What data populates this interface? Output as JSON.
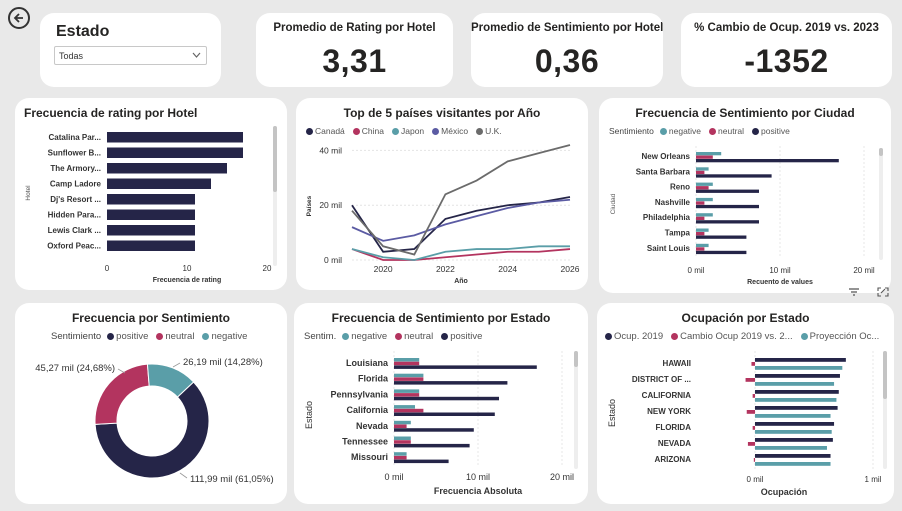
{
  "colors": {
    "navy": "#252548",
    "maroon": "#b3345f",
    "teal": "#5a9ea8",
    "gray": "#6b6b6b",
    "purple": "#5b5ba3",
    "slate": "#6c6cac"
  },
  "back_icon": "back-arrow-icon",
  "slicer": {
    "title": "Estado",
    "value": "Todas"
  },
  "kpis": [
    {
      "title": "Promedio de Rating por Hotel",
      "value": "3,31"
    },
    {
      "title": "Promedio de Sentimiento por Hotel",
      "value": "0,36"
    },
    {
      "title": "% Cambio de Ocup. 2019 vs. 2023",
      "value": "-1352"
    }
  ],
  "rating_chart": {
    "title": "Frecuencia de rating por Hotel",
    "ylabel": "Hotel",
    "xlabel": "Frecuencia de rating",
    "ticks": [
      "0",
      "10",
      "20"
    ],
    "xmax": 20,
    "categories": [
      "Catalina Par...",
      "Sunflower B...",
      "The Armory...",
      "Camp Ladore",
      "Dj's Resort ...",
      "Hidden Para...",
      "Lewis Clark ...",
      "Oxford Peac..."
    ],
    "values": [
      17,
      17,
      15,
      13,
      11,
      11,
      11,
      11
    ]
  },
  "line_chart": {
    "title": "Top de 5 países visitantes por Año",
    "ylabel": "Países",
    "xlabel": "Año",
    "yticks": [
      "0 mil",
      "20 mil",
      "40 mil"
    ],
    "xticks": [
      "2020",
      "2022",
      "2024",
      "2026"
    ],
    "series": [
      {
        "name": "Canadá",
        "x": [
          2019,
          2020,
          2021,
          2022,
          2023,
          2024,
          2025,
          2026
        ],
        "y": [
          20,
          3,
          4,
          15,
          18,
          20,
          21,
          23
        ]
      },
      {
        "name": "China",
        "x": [
          2019,
          2020,
          2021,
          2022,
          2023,
          2024,
          2025,
          2026
        ],
        "y": [
          4,
          0,
          0,
          1,
          2,
          3,
          3,
          4
        ]
      },
      {
        "name": "Japon",
        "x": [
          2019,
          2020,
          2021,
          2022,
          2023,
          2024,
          2025,
          2026
        ],
        "y": [
          4,
          1,
          0,
          3,
          4,
          4,
          5,
          5
        ]
      },
      {
        "name": "México",
        "x": [
          2019,
          2020,
          2021,
          2022,
          2023,
          2024,
          2025,
          2026
        ],
        "y": [
          12,
          7,
          9,
          13,
          16,
          19,
          21,
          22
        ]
      },
      {
        "name": "U.K.",
        "x": [
          2019,
          2020,
          2021,
          2022,
          2023,
          2024,
          2025,
          2026
        ],
        "y": [
          18,
          5,
          2,
          24,
          29,
          36,
          39,
          42
        ]
      }
    ]
  },
  "sent_city": {
    "title": "Frecuencia de Sentimiento por Ciudad",
    "legend_label": "Sentimiento",
    "legend": [
      "negative",
      "neutral",
      "positive"
    ],
    "ylabel": "Ciudad",
    "xlabel": "Recuento de values",
    "ticks": [
      "0 mil",
      "10 mil",
      "20 mil"
    ],
    "xmax": 20,
    "categories": [
      "New Orleans",
      "Santa Barbara",
      "Reno",
      "Nashville",
      "Philadelphia",
      "Tampa",
      "Saint Louis"
    ],
    "negative": [
      3,
      1.5,
      2,
      2,
      2,
      1.5,
      1.5
    ],
    "neutral": [
      2,
      1,
      1.5,
      1,
      1,
      1,
      1
    ],
    "positive": [
      17,
      9,
      7.5,
      7.5,
      7.5,
      6,
      6
    ]
  },
  "donut": {
    "title": "Frecuencia por Sentimiento",
    "legend_label": "Sentimiento",
    "legend": [
      "positive",
      "neutral",
      "negative"
    ],
    "slices": [
      {
        "name": "positive",
        "value": 111.99,
        "label": "111,99 mil (61,05%)"
      },
      {
        "name": "neutral",
        "value": 45.27,
        "label": "45,27 mil (24,68%)"
      },
      {
        "name": "negative",
        "value": 26.19,
        "label": "26,19 mil (14,28%)"
      }
    ]
  },
  "sent_state": {
    "title": "Frecuencia de Sentimiento por Estado",
    "legend_label": "Sentim.",
    "legend": [
      "negative",
      "neutral",
      "positive"
    ],
    "ylabel": "Estado",
    "xlabel": "Frecuencia Absoluta",
    "ticks": [
      "0 mil",
      "10 mil",
      "20 mil"
    ],
    "xmax": 20,
    "categories": [
      "Louisiana",
      "Florida",
      "Pennsylvania",
      "California",
      "Nevada",
      "Tennessee",
      "Missouri"
    ],
    "negative": [
      3,
      3.5,
      3,
      2.5,
      2,
      2,
      1.5
    ],
    "neutral": [
      3,
      3.5,
      3,
      3.5,
      1.5,
      2,
      1.5
    ],
    "positive": [
      17,
      13.5,
      12.5,
      12,
      9.5,
      9,
      6.5
    ]
  },
  "ocup": {
    "title": "Ocupación por Estado",
    "legend": [
      "Ocup. 2019",
      "Cambio Ocup 2019 vs. 2...",
      "Proyección Oc..."
    ],
    "ylabel": "Estado",
    "xlabel": "Ocupación",
    "ticks": [
      "0 mil",
      "1 mil"
    ],
    "xmin": 0,
    "xmax": 1,
    "categories": [
      "HAWAII",
      "DISTRICT OF ...",
      "CALIFORNIA",
      "NEW YORK",
      "FLORIDA",
      "NEVADA",
      "ARIZONA"
    ],
    "ocup2019": [
      0.77,
      0.72,
      0.71,
      0.7,
      0.67,
      0.66,
      0.64
    ],
    "cambio": [
      -0.03,
      -0.08,
      -0.02,
      -0.07,
      -0.02,
      -0.06,
      -0.01
    ],
    "proyeccion": [
      0.74,
      0.67,
      0.69,
      0.64,
      0.65,
      0.61,
      0.64
    ]
  }
}
